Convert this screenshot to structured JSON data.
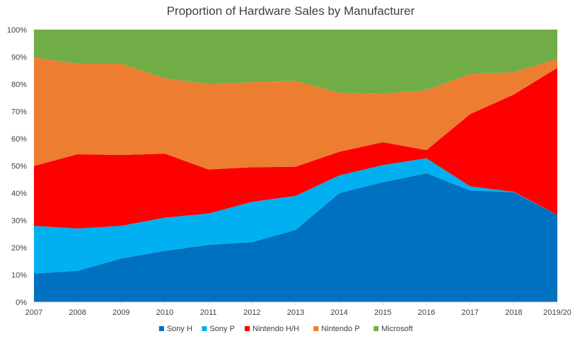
{
  "chart_data": {
    "type": "area",
    "stacked": true,
    "percent": true,
    "title": "Proportion of Hardware Sales by Manufacturer",
    "xlabel": "",
    "ylabel": "",
    "ylim": [
      0,
      100
    ],
    "y_ticks": [
      "0%",
      "10%",
      "20%",
      "30%",
      "40%",
      "50%",
      "60%",
      "70%",
      "80%",
      "90%",
      "100%"
    ],
    "categories": [
      "2007",
      "2008",
      "2009",
      "2010",
      "2011",
      "2012",
      "2013",
      "2014",
      "2015",
      "2016",
      "2017",
      "2018",
      "2019/20"
    ],
    "legend_position": "bottom",
    "grid": true,
    "series": [
      {
        "name": "Sony H",
        "color": "#0070C0",
        "values": [
          10.5,
          11.5,
          16,
          18.8,
          21,
          22,
          26.5,
          40,
          44,
          47.3,
          41,
          40.3,
          32
        ]
      },
      {
        "name": "Sony P",
        "color": "#00B0F0",
        "values": [
          17.5,
          15.5,
          12,
          12.2,
          11.5,
          14.8,
          12.5,
          6.5,
          6.3,
          5.5,
          1.5,
          0.2,
          0
        ]
      },
      {
        "name": "Nintendo H/H",
        "color": "#FF0000",
        "values": [
          22,
          27.3,
          26,
          23.5,
          16.2,
          12.7,
          10.7,
          8.7,
          8.4,
          3,
          26.5,
          35.7,
          54
        ]
      },
      {
        "name": "Nintendo P",
        "color": "#ED7D31",
        "values": [
          39.8,
          33.2,
          33.5,
          27.7,
          31.3,
          31.2,
          31.5,
          21.6,
          17.8,
          22,
          14.7,
          8.2,
          3.3
        ]
      },
      {
        "name": "Microsoft",
        "color": "#70AD47",
        "values": [
          10.2,
          12.5,
          12.5,
          17.8,
          20,
          19.3,
          18.8,
          23.2,
          23.5,
          22.2,
          16.3,
          15.6,
          10.7
        ]
      }
    ]
  }
}
